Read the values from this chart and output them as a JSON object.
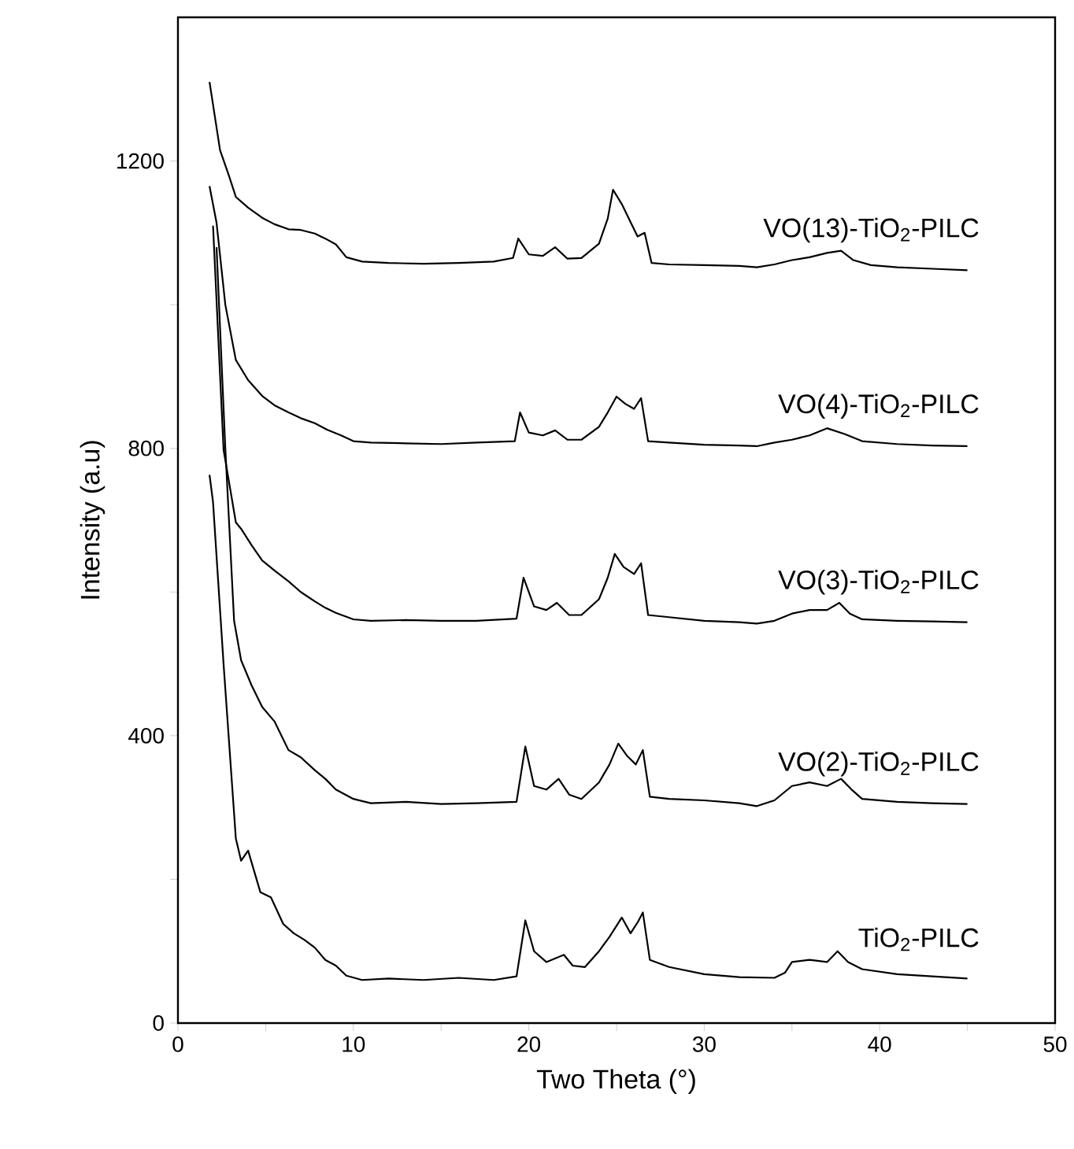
{
  "chart_data": {
    "type": "line",
    "xlabel": "Two Theta (°)",
    "ylabel": "Intensity (a.u)",
    "xlim": [
      0,
      50
    ],
    "ylim": [
      0,
      1400
    ],
    "xticks": [
      0,
      {
        "value": 5,
        "label": null
      },
      10,
      {
        "value": 15,
        "label": null
      },
      20,
      {
        "value": 25,
        "label": null
      },
      30,
      {
        "value": 35,
        "label": null
      },
      40,
      {
        "value": 45,
        "label": null
      },
      50
    ],
    "yticks": [
      0,
      {
        "value": 200,
        "label": null
      },
      400,
      {
        "value": 600,
        "label": null
      },
      800,
      {
        "value": 1000,
        "label": null
      },
      1200
    ],
    "series": [
      {
        "name": "TiO$_{2}$-PILC",
        "color": "#000000",
        "x": [
          1.8,
          2.0,
          2.6,
          3.3,
          3.6,
          4.0,
          4.7,
          5.3,
          6.0,
          6.6,
          7.2,
          7.8,
          8.4,
          9.0,
          9.6,
          10.5,
          12,
          14,
          16,
          18,
          19.3,
          19.8,
          20.3,
          21,
          21.5,
          22,
          22.5,
          23.2,
          24,
          24.6,
          25.3,
          25.8,
          26.2,
          26.5,
          26.9,
          28,
          30,
          32,
          34,
          34.6,
          35,
          36,
          37,
          37.6,
          38.2,
          39,
          41,
          43,
          45
        ],
        "values": [
          763,
          725,
          500,
          257,
          226,
          240,
          182,
          175,
          138,
          125,
          116,
          105,
          88,
          80,
          66,
          60,
          62,
          60,
          63,
          60,
          65,
          143,
          100,
          85,
          90,
          95,
          80,
          78,
          100,
          120,
          147,
          125,
          140,
          154,
          88,
          78,
          68,
          64,
          63,
          70,
          85,
          88,
          85,
          100,
          85,
          75,
          68,
          65,
          62
        ]
      },
      {
        "name": "VO(2)-TiO$_{2}$-PILC",
        "color": "#000000",
        "x": [
          2.2,
          2.7,
          3.2,
          3.6,
          4.2,
          4.8,
          5.5,
          6.3,
          7.0,
          7.8,
          8.4,
          9.0,
          10.0,
          11,
          13,
          15,
          17,
          19.3,
          19.8,
          20.3,
          21,
          21.7,
          22.3,
          23,
          24,
          24.6,
          25.1,
          25.6,
          26.1,
          26.5,
          26.9,
          28,
          30,
          32,
          33,
          34,
          35,
          36,
          37,
          37.8,
          38.4,
          39,
          41,
          43,
          45
        ],
        "values": [
          1080,
          800,
          560,
          505,
          470,
          440,
          420,
          380,
          370,
          352,
          340,
          325,
          312,
          306,
          308,
          305,
          306,
          308,
          385,
          330,
          325,
          340,
          318,
          312,
          335,
          360,
          389,
          372,
          360,
          380,
          315,
          312,
          310,
          306,
          302,
          310,
          330,
          335,
          330,
          340,
          325,
          312,
          308,
          306,
          305
        ]
      },
      {
        "name": "VO(3)-TiO$_{2}$-PILC",
        "color": "#000000",
        "x": [
          2.0,
          2.6,
          3.3,
          3.6,
          4.2,
          4.8,
          5.5,
          6.3,
          7.0,
          7.8,
          8.4,
          9.0,
          10.0,
          11,
          13,
          15,
          17,
          19.3,
          19.7,
          20.3,
          21,
          21.6,
          22.3,
          23,
          24,
          24.5,
          24.9,
          25.4,
          26.0,
          26.4,
          26.8,
          28,
          30,
          32,
          33,
          34,
          35,
          36,
          37,
          37.7,
          38.3,
          39,
          41,
          43,
          45
        ],
        "values": [
          1110,
          798,
          697,
          688,
          665,
          644,
          630,
          615,
          600,
          587,
          578,
          571,
          562,
          560,
          561,
          560,
          560,
          563,
          620,
          580,
          575,
          585,
          568,
          568,
          590,
          620,
          653,
          635,
          625,
          640,
          568,
          565,
          560,
          558,
          556,
          560,
          570,
          575,
          575,
          585,
          570,
          562,
          560,
          559,
          558
        ]
      },
      {
        "name": "VO(4)-TiO$_{2}$-PILC",
        "color": "#000000",
        "x": [
          1.8,
          2.2,
          2.7,
          3.3,
          4.0,
          4.8,
          5.5,
          6.3,
          7.0,
          7.8,
          8.5,
          9.3,
          10.0,
          11,
          13,
          15,
          17,
          19.2,
          19.5,
          20.0,
          20.8,
          21.5,
          22.2,
          23,
          24,
          24.5,
          25.0,
          25.5,
          26.0,
          26.4,
          26.8,
          28,
          30,
          32,
          33,
          34,
          35,
          36,
          37,
          38,
          39,
          41,
          43,
          45
        ],
        "values": [
          1165,
          1114,
          1000,
          923,
          895,
          873,
          860,
          850,
          842,
          835,
          826,
          818,
          810,
          808,
          807,
          806,
          808,
          810,
          850,
          822,
          818,
          825,
          812,
          812,
          830,
          850,
          872,
          862,
          855,
          870,
          810,
          808,
          805,
          804,
          803,
          808,
          812,
          818,
          828,
          820,
          810,
          806,
          804,
          803
        ]
      },
      {
        "name": "VO(13)-TiO$_{2}$-PILC",
        "color": "#000000",
        "x": [
          1.8,
          2.4,
          2.9,
          3.3,
          4.0,
          4.8,
          5.5,
          6.3,
          7.0,
          7.8,
          8.4,
          9.0,
          9.6,
          10.5,
          12,
          14,
          16,
          18,
          19.1,
          19.4,
          20.0,
          20.8,
          21.5,
          22.2,
          23,
          24,
          24.5,
          24.8,
          25.3,
          25.8,
          26.2,
          26.6,
          27,
          28,
          30,
          32,
          33,
          34,
          35,
          36,
          37,
          37.8,
          38.5,
          39.5,
          41,
          43,
          45
        ],
        "values": [
          1310,
          1215,
          1180,
          1150,
          1135,
          1121,
          1112,
          1105,
          1104,
          1099,
          1092,
          1084,
          1066,
          1060,
          1058,
          1057,
          1058,
          1060,
          1065,
          1092,
          1070,
          1068,
          1080,
          1064,
          1065,
          1085,
          1120,
          1160,
          1140,
          1115,
          1095,
          1100,
          1058,
          1056,
          1055,
          1054,
          1052,
          1056,
          1062,
          1066,
          1072,
          1075,
          1062,
          1055,
          1052,
          1050,
          1048
        ]
      }
    ]
  }
}
